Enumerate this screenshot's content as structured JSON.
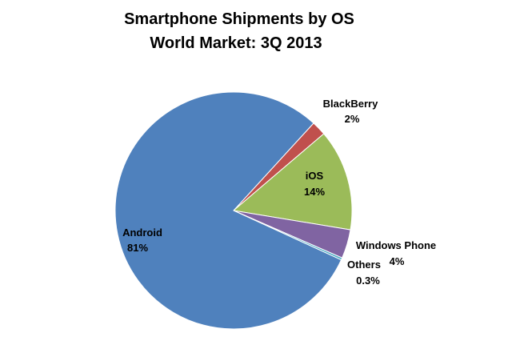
{
  "chart_data": {
    "type": "pie",
    "title": [
      "Smartphone Shipments by OS",
      "World Market: 3Q 2013"
    ],
    "legend": "none",
    "slices": [
      {
        "category": "BlackBerry",
        "value": 2,
        "label": "2%",
        "color": "#C0504D"
      },
      {
        "category": "iOS",
        "value": 14,
        "label": "14%",
        "color": "#9BBB59"
      },
      {
        "category": "Windows Phone",
        "value": 4,
        "label": "4%",
        "color": "#8064A2"
      },
      {
        "category": "Others",
        "value": 0.3,
        "label": "0.3%",
        "color": "#4BACC6"
      },
      {
        "category": "Android",
        "value": 81,
        "label": "81%",
        "color": "#4F81BD"
      }
    ]
  }
}
